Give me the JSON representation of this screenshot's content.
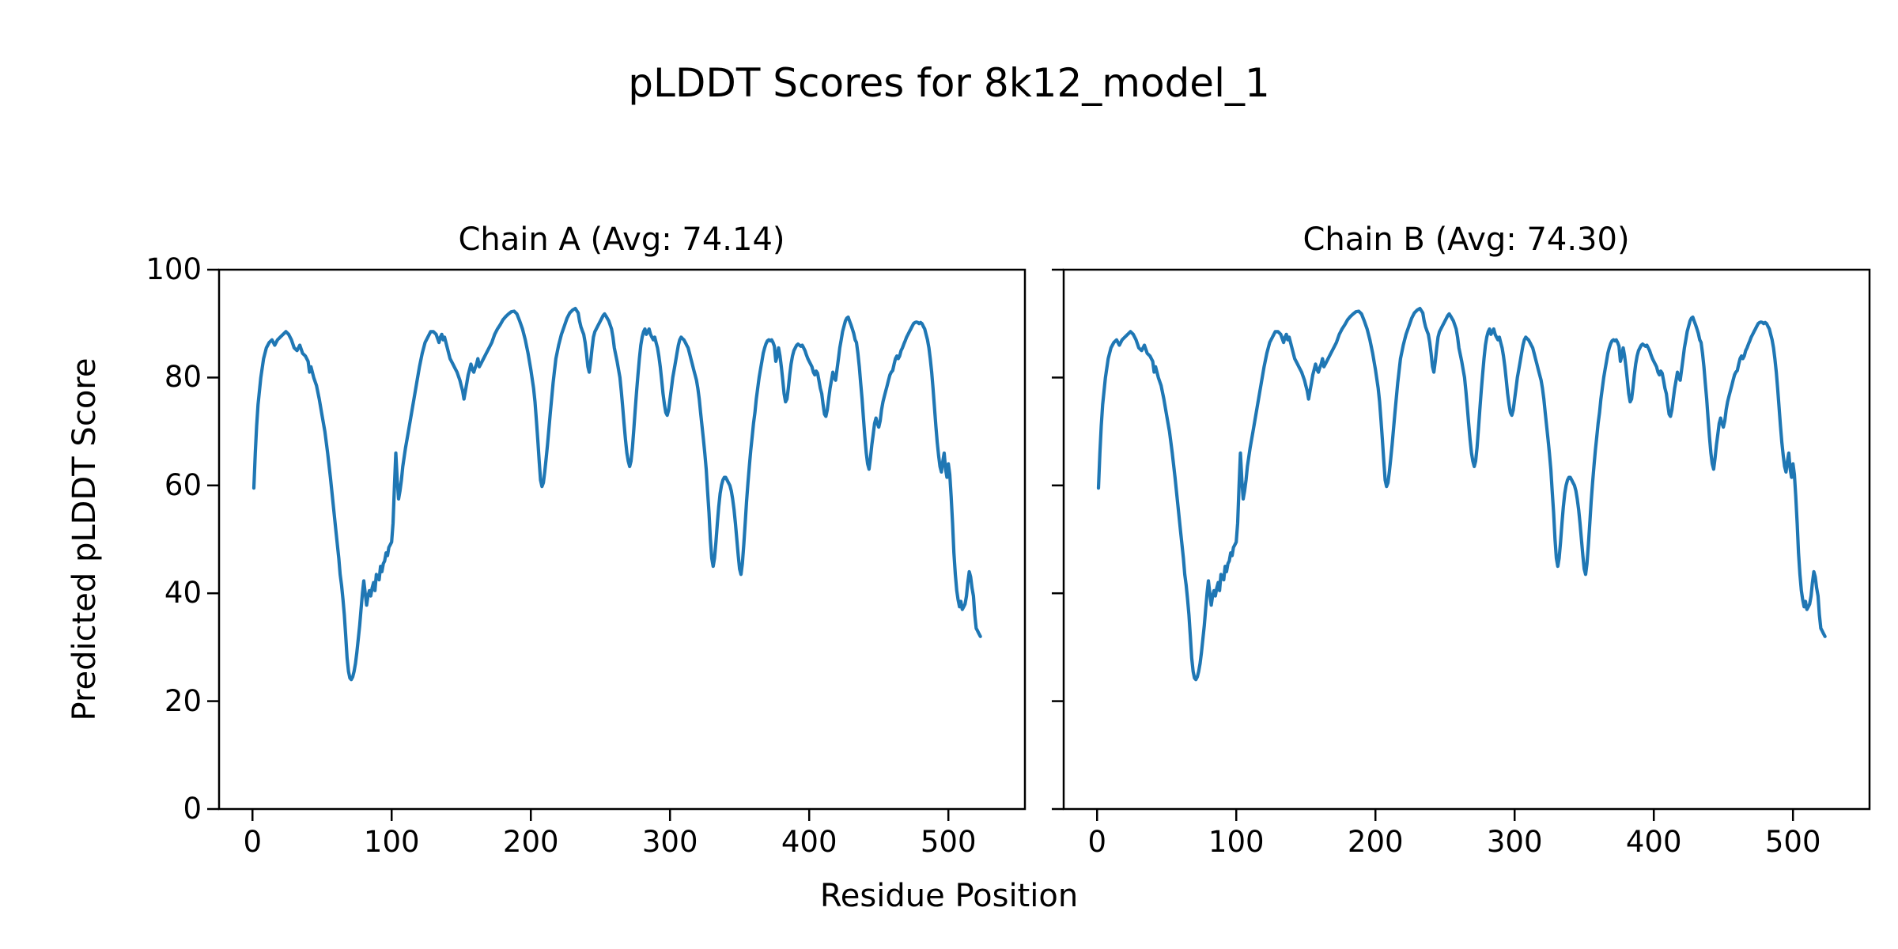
{
  "chart_data": {
    "type": "line",
    "title": "pLDDT Scores for 8k12_model_1",
    "xlabel": "Residue Position",
    "ylabel": "Predicted pLDDT Score",
    "xlim": [
      -24,
      555
    ],
    "ylim": [
      0,
      100
    ],
    "xticks": [
      0,
      100,
      200,
      300,
      400,
      500
    ],
    "yticks": [
      0,
      20,
      40,
      60,
      80,
      100
    ],
    "grid": false,
    "legend": "none",
    "line_color": "#1f77b4",
    "axis_color": "#000000",
    "background_color": "#ffffff",
    "points_shared_by_subplots": true,
    "points_format": [
      "residue_position",
      "plddt_score"
    ],
    "subplots": [
      {
        "chain": "A",
        "title": "Chain A (Avg: 74.14)",
        "avg_plddt": 74.14
      },
      {
        "chain": "B",
        "title": "Chain B (Avg: 74.30)",
        "avg_plddt": 74.3
      }
    ],
    "points": [
      [
        1,
        59.5
      ],
      [
        2,
        66
      ],
      [
        3,
        71
      ],
      [
        4,
        75
      ],
      [
        6,
        80
      ],
      [
        8,
        83.5
      ],
      [
        10,
        85.5
      ],
      [
        12,
        86.5
      ],
      [
        14,
        87
      ],
      [
        16,
        86
      ],
      [
        18,
        87
      ],
      [
        20,
        87.5
      ],
      [
        22,
        88
      ],
      [
        24,
        88.5
      ],
      [
        26,
        88
      ],
      [
        28,
        87
      ],
      [
        30,
        85.5
      ],
      [
        32,
        85
      ],
      [
        34,
        86
      ],
      [
        36,
        84.5
      ],
      [
        38,
        84
      ],
      [
        40,
        83
      ],
      [
        41,
        81
      ],
      [
        42,
        82
      ],
      [
        44,
        80
      ],
      [
        46,
        78.5
      ],
      [
        48,
        76
      ],
      [
        50,
        73
      ],
      [
        52,
        70
      ],
      [
        54,
        66
      ],
      [
        56,
        61.5
      ],
      [
        58,
        56.5
      ],
      [
        60,
        51.5
      ],
      [
        62,
        46.5
      ],
      [
        63,
        43.5
      ],
      [
        64,
        41.5
      ],
      [
        65,
        39
      ],
      [
        66,
        36
      ],
      [
        67,
        32
      ],
      [
        68,
        28
      ],
      [
        69,
        25.5
      ],
      [
        70,
        24.3
      ],
      [
        71,
        24
      ],
      [
        72,
        24.5
      ],
      [
        73,
        25.5
      ],
      [
        74,
        27
      ],
      [
        75,
        29
      ],
      [
        76,
        31.5
      ],
      [
        77,
        34
      ],
      [
        78,
        37
      ],
      [
        79,
        40
      ],
      [
        80,
        42.3
      ],
      [
        81,
        40
      ],
      [
        82,
        37.8
      ],
      [
        83,
        39.5
      ],
      [
        84,
        40.5
      ],
      [
        85,
        39.5
      ],
      [
        86,
        41
      ],
      [
        87,
        42
      ],
      [
        88,
        40.5
      ],
      [
        89,
        43.5
      ],
      [
        90,
        43
      ],
      [
        91,
        42.5
      ],
      [
        92,
        45
      ],
      [
        93,
        44
      ],
      [
        94,
        45.5
      ],
      [
        95,
        46
      ],
      [
        96,
        47.5
      ],
      [
        97,
        47
      ],
      [
        98,
        48.5
      ],
      [
        99,
        49
      ],
      [
        100,
        49.5
      ],
      [
        101,
        53
      ],
      [
        102,
        60
      ],
      [
        103,
        66
      ],
      [
        104,
        61
      ],
      [
        105,
        57.5
      ],
      [
        106,
        59
      ],
      [
        107,
        61
      ],
      [
        108,
        63.5
      ],
      [
        110,
        67
      ],
      [
        112,
        70
      ],
      [
        114,
        73
      ],
      [
        116,
        76
      ],
      [
        118,
        79
      ],
      [
        120,
        82
      ],
      [
        122,
        84.5
      ],
      [
        124,
        86.5
      ],
      [
        126,
        87.5
      ],
      [
        128,
        88.5
      ],
      [
        130,
        88.5
      ],
      [
        132,
        88
      ],
      [
        134,
        86.5
      ],
      [
        135,
        87.5
      ],
      [
        136,
        88
      ],
      [
        137,
        87
      ],
      [
        138,
        87.5
      ],
      [
        140,
        85.5
      ],
      [
        142,
        83.5
      ],
      [
        144,
        82.5
      ],
      [
        145,
        82
      ],
      [
        147,
        81
      ],
      [
        149,
        79.5
      ],
      [
        150,
        78.5
      ],
      [
        151,
        77.5
      ],
      [
        152,
        76
      ],
      [
        153,
        77.5
      ],
      [
        154,
        79
      ],
      [
        155,
        80.5
      ],
      [
        156,
        81.5
      ],
      [
        157,
        82.5
      ],
      [
        158,
        81.5
      ],
      [
        159,
        81
      ],
      [
        160,
        81.8
      ],
      [
        161,
        82.5
      ],
      [
        162,
        83.5
      ],
      [
        163,
        82
      ],
      [
        164,
        82.5
      ],
      [
        166,
        83.5
      ],
      [
        168,
        84.5
      ],
      [
        170,
        85.5
      ],
      [
        172,
        86.5
      ],
      [
        174,
        88
      ],
      [
        176,
        89
      ],
      [
        178,
        89.8
      ],
      [
        180,
        90.7
      ],
      [
        182,
        91.3
      ],
      [
        184,
        91.8
      ],
      [
        186,
        92.2
      ],
      [
        188,
        92.3
      ],
      [
        190,
        91.8
      ],
      [
        192,
        90.5
      ],
      [
        194,
        89
      ],
      [
        196,
        87
      ],
      [
        198,
        84.5
      ],
      [
        200,
        81.5
      ],
      [
        202,
        78
      ],
      [
        203,
        75.5
      ],
      [
        204,
        72
      ],
      [
        205,
        68.5
      ],
      [
        206,
        64.5
      ],
      [
        207,
        61
      ],
      [
        208,
        59.8
      ],
      [
        209,
        60.5
      ],
      [
        210,
        62.5
      ],
      [
        211,
        65
      ],
      [
        212,
        67.5
      ],
      [
        213,
        70.5
      ],
      [
        214,
        73.5
      ],
      [
        216,
        79
      ],
      [
        218,
        83.5
      ],
      [
        220,
        86
      ],
      [
        222,
        88
      ],
      [
        224,
        89.5
      ],
      [
        226,
        91
      ],
      [
        228,
        92
      ],
      [
        230,
        92.5
      ],
      [
        232,
        92.8
      ],
      [
        234,
        92
      ],
      [
        235,
        90.5
      ],
      [
        236,
        89.4
      ],
      [
        237,
        88.7
      ],
      [
        238,
        88
      ],
      [
        239,
        86.5
      ],
      [
        240,
        84.5
      ],
      [
        241,
        82
      ],
      [
        242,
        81
      ],
      [
        243,
        83
      ],
      [
        244,
        85.5
      ],
      [
        245,
        87.5
      ],
      [
        246,
        88.5
      ],
      [
        248,
        89.5
      ],
      [
        250,
        90.5
      ],
      [
        252,
        91.5
      ],
      [
        253,
        91.8
      ],
      [
        254,
        91.4
      ],
      [
        256,
        90.5
      ],
      [
        258,
        89
      ],
      [
        259,
        87.5
      ],
      [
        260,
        85.5
      ],
      [
        262,
        83
      ],
      [
        263,
        81.5
      ],
      [
        264,
        80
      ],
      [
        265,
        77.5
      ],
      [
        266,
        74.5
      ],
      [
        267,
        71.5
      ],
      [
        268,
        68.5
      ],
      [
        269,
        66
      ],
      [
        270,
        64.5
      ],
      [
        271,
        63.5
      ],
      [
        272,
        64.5
      ],
      [
        273,
        67
      ],
      [
        274,
        70.5
      ],
      [
        275,
        74
      ],
      [
        276,
        77.5
      ],
      [
        277,
        80.5
      ],
      [
        278,
        83.5
      ],
      [
        279,
        86
      ],
      [
        280,
        87.5
      ],
      [
        281,
        88.5
      ],
      [
        282,
        89
      ],
      [
        283,
        88
      ],
      [
        284,
        88.5
      ],
      [
        285,
        89
      ],
      [
        286,
        88
      ],
      [
        287,
        87.5
      ],
      [
        288,
        87
      ],
      [
        289,
        87.5
      ],
      [
        290,
        86.5
      ],
      [
        291,
        85.5
      ],
      [
        292,
        84
      ],
      [
        293,
        82
      ],
      [
        294,
        79.5
      ],
      [
        295,
        77
      ],
      [
        296,
        75
      ],
      [
        297,
        73.5
      ],
      [
        298,
        73
      ],
      [
        299,
        74
      ],
      [
        300,
        76
      ],
      [
        301,
        78
      ],
      [
        302,
        80
      ],
      [
        303,
        81.5
      ],
      [
        304,
        83
      ],
      [
        305,
        84.5
      ],
      [
        306,
        86
      ],
      [
        307,
        87
      ],
      [
        308,
        87.5
      ],
      [
        309,
        87.2
      ],
      [
        310,
        87
      ],
      [
        311,
        86.5
      ],
      [
        312,
        86
      ],
      [
        313,
        85.5
      ],
      [
        314,
        84.5
      ],
      [
        315,
        83.5
      ],
      [
        316,
        82.5
      ],
      [
        317,
        81.5
      ],
      [
        318,
        80.5
      ],
      [
        319,
        79.5
      ],
      [
        320,
        78
      ],
      [
        321,
        76
      ],
      [
        322,
        73.5
      ],
      [
        323,
        71
      ],
      [
        324,
        68.5
      ],
      [
        325,
        66
      ],
      [
        326,
        63
      ],
      [
        327,
        59
      ],
      [
        328,
        55
      ],
      [
        329,
        50
      ],
      [
        330,
        46.5
      ],
      [
        331,
        45
      ],
      [
        332,
        46.5
      ],
      [
        333,
        49.5
      ],
      [
        334,
        53
      ],
      [
        335,
        56
      ],
      [
        336,
        58.5
      ],
      [
        337,
        60
      ],
      [
        338,
        61
      ],
      [
        339,
        61.5
      ],
      [
        340,
        61.5
      ],
      [
        341,
        61
      ],
      [
        342,
        60.5
      ],
      [
        343,
        60
      ],
      [
        344,
        59
      ],
      [
        345,
        57.5
      ],
      [
        346,
        55.5
      ],
      [
        347,
        53
      ],
      [
        348,
        50
      ],
      [
        349,
        47
      ],
      [
        350,
        44.5
      ],
      [
        351,
        43.5
      ],
      [
        352,
        45.5
      ],
      [
        353,
        49
      ],
      [
        354,
        53
      ],
      [
        355,
        57
      ],
      [
        356,
        60.5
      ],
      [
        357,
        63.5
      ],
      [
        358,
        66.5
      ],
      [
        359,
        69
      ],
      [
        360,
        71.5
      ],
      [
        361,
        73.5
      ],
      [
        362,
        76
      ],
      [
        363,
        78
      ],
      [
        364,
        80
      ],
      [
        365,
        81.5
      ],
      [
        366,
        83
      ],
      [
        367,
        84.5
      ],
      [
        368,
        85.5
      ],
      [
        369,
        86.3
      ],
      [
        370,
        86.8
      ],
      [
        371,
        87
      ],
      [
        372,
        86.8
      ],
      [
        373,
        87
      ],
      [
        374,
        86.5
      ],
      [
        375,
        85.8
      ],
      [
        376,
        83
      ],
      [
        377,
        84
      ],
      [
        378,
        85.5
      ],
      [
        379,
        84
      ],
      [
        380,
        82
      ],
      [
        381,
        79.5
      ],
      [
        382,
        77
      ],
      [
        383,
        75.5
      ],
      [
        384,
        76
      ],
      [
        385,
        78
      ],
      [
        386,
        80.5
      ],
      [
        387,
        82.5
      ],
      [
        388,
        84
      ],
      [
        389,
        85
      ],
      [
        390,
        85.5
      ],
      [
        391,
        86
      ],
      [
        392,
        86.2
      ],
      [
        393,
        86
      ],
      [
        394,
        85.8
      ],
      [
        395,
        86
      ],
      [
        396,
        85.5
      ],
      [
        397,
        85
      ],
      [
        398,
        84.2
      ],
      [
        399,
        83.5
      ],
      [
        400,
        83
      ],
      [
        401,
        82.5
      ],
      [
        402,
        82
      ],
      [
        403,
        81
      ],
      [
        404,
        80.5
      ],
      [
        405,
        81.2
      ],
      [
        406,
        80.8
      ],
      [
        407,
        79.5
      ],
      [
        408,
        78
      ],
      [
        409,
        77
      ],
      [
        410,
        75
      ],
      [
        411,
        73.2
      ],
      [
        412,
        72.8
      ],
      [
        413,
        74
      ],
      [
        414,
        76
      ],
      [
        415,
        78
      ],
      [
        416,
        79.5
      ],
      [
        417,
        81
      ],
      [
        418,
        80
      ],
      [
        419,
        79.5
      ],
      [
        420,
        81.5
      ],
      [
        421,
        83.5
      ],
      [
        422,
        85.5
      ],
      [
        423,
        87
      ],
      [
        424,
        88.5
      ],
      [
        425,
        89.5
      ],
      [
        426,
        90.5
      ],
      [
        427,
        91
      ],
      [
        428,
        91.2
      ],
      [
        429,
        90.5
      ],
      [
        430,
        89.8
      ],
      [
        431,
        89
      ],
      [
        432,
        88.2
      ],
      [
        433,
        87
      ],
      [
        434,
        86.5
      ],
      [
        435,
        84.5
      ],
      [
        436,
        82
      ],
      [
        437,
        79
      ],
      [
        438,
        76
      ],
      [
        439,
        72.5
      ],
      [
        440,
        69
      ],
      [
        441,
        66
      ],
      [
        442,
        64
      ],
      [
        443,
        63
      ],
      [
        444,
        65
      ],
      [
        445,
        67.5
      ],
      [
        446,
        69.5
      ],
      [
        447,
        71.5
      ],
      [
        448,
        72.5
      ],
      [
        449,
        71.5
      ],
      [
        450,
        70.8
      ],
      [
        451,
        72
      ],
      [
        452,
        74
      ],
      [
        453,
        75.5
      ],
      [
        454,
        76.5
      ],
      [
        455,
        77.5
      ],
      [
        456,
        78.5
      ],
      [
        457,
        79.5
      ],
      [
        458,
        80.5
      ],
      [
        459,
        81
      ],
      [
        460,
        81.3
      ],
      [
        461,
        82.5
      ],
      [
        462,
        83.5
      ],
      [
        463,
        84
      ],
      [
        464,
        83.5
      ],
      [
        465,
        84
      ],
      [
        466,
        85
      ],
      [
        467,
        85.5
      ],
      [
        468,
        86.2
      ],
      [
        469,
        86.8
      ],
      [
        470,
        87.5
      ],
      [
        471,
        88
      ],
      [
        472,
        88.5
      ],
      [
        473,
        89
      ],
      [
        474,
        89.5
      ],
      [
        475,
        90
      ],
      [
        476,
        90.2
      ],
      [
        477,
        90.3
      ],
      [
        478,
        90.2
      ],
      [
        479,
        90
      ],
      [
        480,
        90.2
      ],
      [
        481,
        90
      ],
      [
        482,
        89.5
      ],
      [
        483,
        89
      ],
      [
        484,
        88
      ],
      [
        485,
        87
      ],
      [
        486,
        85.5
      ],
      [
        487,
        83.5
      ],
      [
        488,
        81
      ],
      [
        489,
        78
      ],
      [
        490,
        74.5
      ],
      [
        491,
        71
      ],
      [
        492,
        68
      ],
      [
        493,
        65.5
      ],
      [
        494,
        63.5
      ],
      [
        495,
        62.5
      ],
      [
        496,
        64.5
      ],
      [
        497,
        66
      ],
      [
        498,
        63
      ],
      [
        499,
        61.5
      ],
      [
        500,
        64
      ],
      [
        501,
        62
      ],
      [
        502,
        58
      ],
      [
        503,
        53
      ],
      [
        504,
        47.5
      ],
      [
        505,
        43.5
      ],
      [
        506,
        40.5
      ],
      [
        507,
        38.8
      ],
      [
        508,
        37.5
      ],
      [
        509,
        38.5
      ],
      [
        510,
        37
      ],
      [
        511,
        37.5
      ],
      [
        512,
        38
      ],
      [
        513,
        39.5
      ],
      [
        514,
        42
      ],
      [
        515,
        44
      ],
      [
        516,
        43
      ],
      [
        517,
        41
      ],
      [
        518,
        39.5
      ],
      [
        519,
        36
      ],
      [
        520,
        33.5
      ],
      [
        521,
        33
      ],
      [
        522,
        32.5
      ],
      [
        523,
        32
      ]
    ]
  }
}
